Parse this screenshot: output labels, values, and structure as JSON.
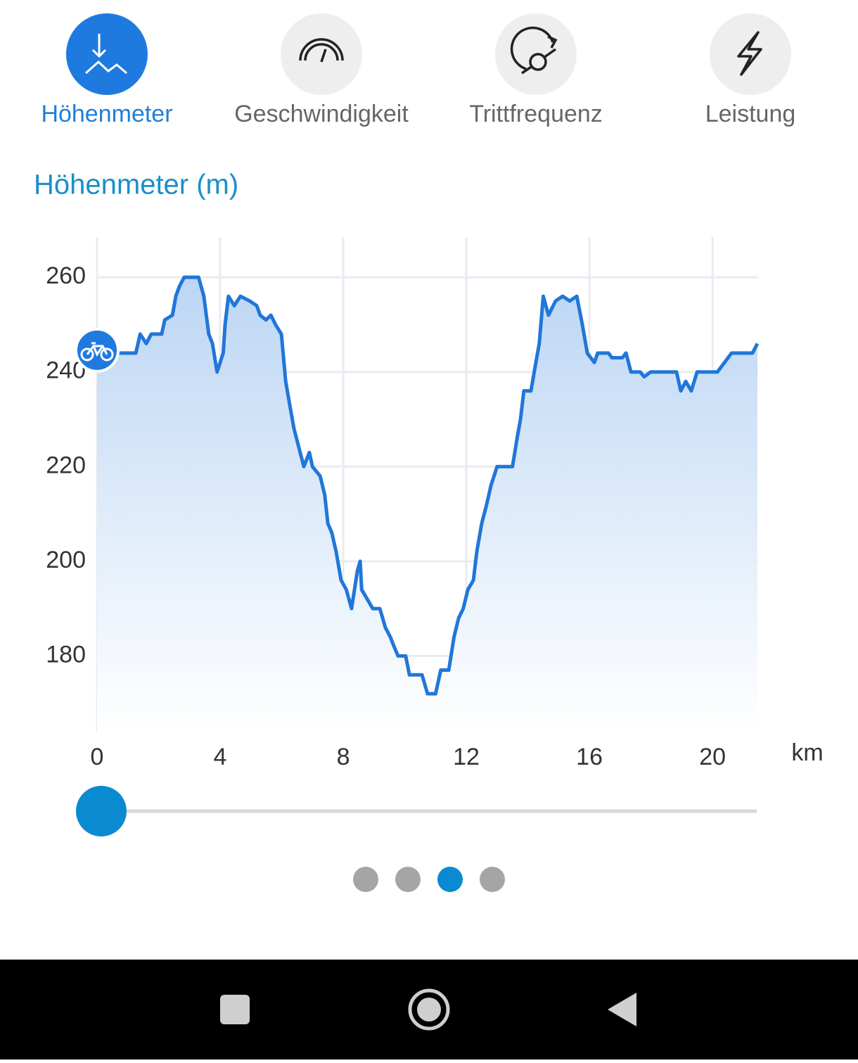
{
  "tabs": {
    "items": [
      "Höhenmeter",
      "Geschwindigkeit",
      "Trittfrequenz",
      "Leistung"
    ],
    "active": 0
  },
  "chart_data": {
    "type": "line",
    "title": "Höhenmeter (m)",
    "x_unit": "km",
    "color": "#2176d9",
    "x": [
      0,
      1.26,
      1.4,
      1.6,
      1.76,
      2.1,
      2.2,
      2.45,
      2.56,
      2.67,
      2.83,
      3.3,
      3.47,
      3.63,
      3.75,
      3.9,
      4.1,
      4.16,
      4.27,
      4.46,
      4.66,
      4.96,
      5.19,
      5.3,
      5.49,
      5.65,
      5.8,
      5.99,
      6.13,
      6.29,
      6.4,
      6.56,
      6.72,
      6.9,
      7.0,
      7.25,
      7.4,
      7.5,
      7.63,
      7.77,
      7.93,
      8.1,
      8.27,
      8.46,
      8.55,
      8.6,
      8.78,
      8.96,
      9.19,
      9.37,
      9.53,
      9.65,
      9.78,
      10.03,
      10.15,
      10.56,
      10.74,
      11.0,
      11.17,
      11.43,
      11.6,
      11.75,
      11.9,
      12.05,
      12.23,
      12.34,
      12.5,
      12.66,
      12.8,
      13.0,
      13.5,
      13.65,
      13.76,
      13.87,
      14.1,
      14.26,
      14.37,
      14.5,
      14.67,
      14.9,
      15.13,
      15.36,
      15.59,
      15.77,
      15.93,
      16.16,
      16.27,
      16.62,
      16.73,
      17.07,
      17.19,
      17.35,
      17.65,
      17.78,
      17.99,
      18.83,
      18.97,
      19.13,
      19.31,
      19.5,
      19.9,
      20.16,
      20.62,
      21.3,
      21.46
    ],
    "values": [
      244,
      244,
      248,
      246,
      248,
      248,
      251,
      252,
      256,
      258,
      260,
      260,
      256,
      248,
      246,
      240,
      244,
      250,
      256,
      254,
      256,
      255,
      254,
      252,
      251,
      252,
      250,
      248,
      238,
      232,
      228,
      224,
      220,
      223,
      220,
      218,
      214,
      208,
      206,
      202,
      196,
      194,
      190,
      198,
      200,
      194,
      192,
      190,
      190,
      186,
      184,
      182,
      180,
      180,
      176,
      176,
      172,
      172,
      177,
      177,
      184,
      188,
      190,
      194,
      196,
      202,
      208,
      212,
      216,
      220,
      220,
      226,
      230,
      236,
      236,
      242,
      246,
      256,
      252,
      255,
      256,
      255,
      256,
      250,
      244,
      242,
      244,
      244,
      243,
      243,
      244,
      240,
      240,
      239,
      240,
      240,
      236,
      238,
      236,
      240,
      240,
      240,
      244,
      244,
      246
    ],
    "xlim": [
      0,
      21.46
    ],
    "ylim": [
      164,
      268.5
    ],
    "xticks": [
      0,
      4,
      8,
      12,
      16,
      20
    ],
    "yticks": [
      180,
      200,
      220,
      240,
      260
    ],
    "grid": true
  },
  "slider": {
    "position": 0
  },
  "pager": {
    "pages": 4,
    "active": 2
  }
}
